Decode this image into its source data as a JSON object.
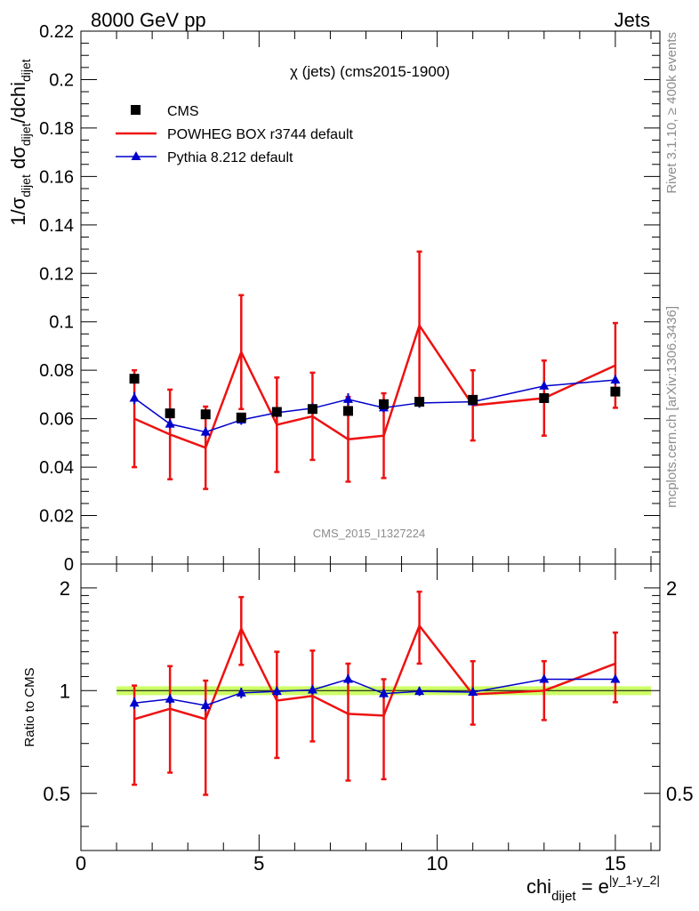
{
  "header": {
    "left": "8000 GeV pp",
    "right": "Jets"
  },
  "side_text": {
    "rivet": "Rivet 3.1.10, ≥ 400k events",
    "mcplots": "mcplots.cern.ch [arXiv:1306.3436]"
  },
  "watermark": "CMS_2015_I1327224",
  "colors": {
    "data": "#000000",
    "powheg": "#ee1111",
    "pythia": "#0000cc",
    "band": "#ccff66"
  },
  "chart_data": [
    {
      "type": "line",
      "panel": "main",
      "title": "χ (jets) (cms2015-1900)",
      "ylabel": "1/σ_dijet dσ_dijet/dchi_dijet",
      "ylim": [
        0,
        0.22
      ],
      "xlim": [
        0,
        16.25
      ],
      "yticks": [
        0,
        0.02,
        0.04,
        0.06,
        0.08,
        0.1,
        0.12,
        0.14,
        0.16,
        0.18,
        0.2,
        0.22
      ],
      "ytick_labels": [
        "0",
        "0.02",
        "0.04",
        "0.06",
        "0.08",
        "0.1",
        "0.12",
        "0.14",
        "0.16",
        "0.18",
        "0.2",
        "0.22"
      ],
      "legend": [
        "CMS",
        "POWHEG BOX r3744 default",
        "Pythia 8.212 default"
      ],
      "bin_edges": [
        1,
        2,
        3,
        4,
        5,
        6,
        7,
        8,
        9,
        10,
        12,
        14,
        16
      ],
      "series": [
        {
          "name": "CMS",
          "x": [
            1.5,
            2.5,
            3.5,
            4.5,
            5.5,
            6.5,
            7.5,
            8.5,
            9.5,
            11,
            13,
            15
          ],
          "values": [
            0.0765,
            0.0622,
            0.0618,
            0.0605,
            0.0628,
            0.064,
            0.0632,
            0.066,
            0.067,
            0.0678,
            0.0685,
            0.0712
          ]
        },
        {
          "name": "POWHEG BOX r3744 default",
          "x": [
            1.5,
            2.5,
            3.5,
            4.5,
            5.5,
            6.5,
            7.5,
            8.5,
            9.5,
            11,
            13,
            15
          ],
          "values": [
            0.06,
            0.0535,
            0.048,
            0.0875,
            0.0575,
            0.061,
            0.0515,
            0.053,
            0.0985,
            0.0655,
            0.0685,
            0.082
          ],
          "err": [
            0.02,
            0.0185,
            0.017,
            0.0235,
            0.0195,
            0.018,
            0.0175,
            0.0175,
            0.0305,
            0.0145,
            0.0155,
            0.0175
          ]
        },
        {
          "name": "Pythia 8.212 default",
          "x": [
            1.5,
            2.5,
            3.5,
            4.5,
            5.5,
            6.5,
            7.5,
            8.5,
            9.5,
            11,
            13,
            15
          ],
          "values": [
            0.0685,
            0.0578,
            0.0545,
            0.0595,
            0.0625,
            0.0643,
            0.068,
            0.0645,
            0.0665,
            0.067,
            0.0735,
            0.076
          ],
          "err": [
            0.0025,
            0.0018,
            0.002,
            0.002,
            0.0018,
            0.0018,
            0.0025,
            0.0018,
            0.002,
            0.0015,
            0.0015,
            0.002
          ]
        }
      ]
    },
    {
      "type": "line",
      "panel": "ratio",
      "ylabel": "Ratio to CMS",
      "xlabel": "chi_dijet = e^|y_1-y_2|",
      "ylog": true,
      "ylim": [
        0.34,
        2.35
      ],
      "xlim": [
        0,
        16.25
      ],
      "xticks": [
        0,
        5,
        10,
        15
      ],
      "xtick_labels": [
        "0",
        "5",
        "10",
        "15"
      ],
      "yticks": [
        0.5,
        1,
        2
      ],
      "ytick_labels": [
        "0.5",
        "1",
        "2"
      ],
      "band": {
        "low": 0.97,
        "high": 1.03
      },
      "series": [
        {
          "name": "POWHEG BOX r3744 default",
          "x": [
            1.5,
            2.5,
            3.5,
            4.5,
            5.5,
            6.5,
            7.5,
            8.5,
            9.5,
            11,
            13,
            15
          ],
          "values": [
            0.825,
            0.885,
            0.825,
            1.52,
            0.935,
            0.965,
            0.855,
            0.845,
            1.55,
            0.975,
            1.0,
            1.2
          ],
          "lo": [
            0.53,
            0.575,
            0.495,
            1.19,
            0.635,
            0.71,
            0.545,
            0.55,
            1.2,
            0.795,
            0.82,
            0.925
          ],
          "hi": [
            1.035,
            1.18,
            1.07,
            1.88,
            1.3,
            1.31,
            1.2,
            1.08,
            1.95,
            1.22,
            1.22,
            1.48
          ]
        },
        {
          "name": "Pythia 8.212 default",
          "x": [
            1.5,
            2.5,
            3.5,
            4.5,
            5.5,
            6.5,
            7.5,
            8.5,
            9.5,
            11,
            13,
            15
          ],
          "values": [
            0.92,
            0.945,
            0.905,
            0.985,
            0.995,
            1.005,
            1.08,
            0.98,
            0.995,
            0.99,
            1.08,
            1.08
          ],
          "err": [
            0.035,
            0.03,
            0.035,
            0.035,
            0.03,
            0.03,
            0.035,
            0.03,
            0.03,
            0.025,
            0.025,
            0.025
          ]
        }
      ]
    }
  ]
}
